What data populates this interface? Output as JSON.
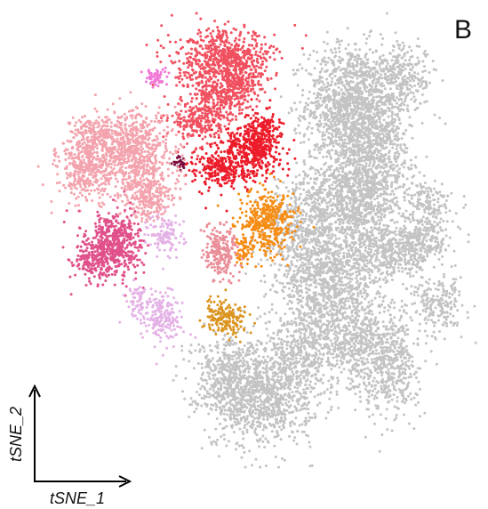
{
  "panel_label": "B",
  "colors": {
    "background": "#ffffff",
    "axis": "#000000",
    "grey": "#c3c3c3",
    "salmon": "#f0505f",
    "red": "#ec1c2a",
    "darkred": "#7a0a3a",
    "pink": "#f3a3ad",
    "magenta": "#e0508a",
    "lavender": "#e4b2e6",
    "brightpink": "#f07ad6",
    "orange": "#f58c14",
    "darkorange": "#db9420",
    "rose": "#ea8e98"
  },
  "chart_data": {
    "type": "scatter",
    "title": "",
    "xlabel": "tSNE_1",
    "ylabel": "tSNE_2",
    "xlim": [
      0,
      100
    ],
    "ylim": [
      0,
      100
    ],
    "grid": false,
    "legend": "none",
    "series": [
      {
        "color": "#c3c3c3",
        "blobs": [
          [
            71,
            80,
            8,
            11,
            1200
          ],
          [
            72,
            60,
            9,
            12,
            1300
          ],
          [
            66,
            40,
            9,
            10,
            900
          ],
          [
            73,
            27,
            8,
            9,
            600
          ],
          [
            60,
            25,
            6,
            8,
            400
          ],
          [
            52,
            15,
            9,
            9,
            800
          ],
          [
            45,
            20,
            7,
            8,
            500
          ],
          [
            80,
            47,
            7,
            5,
            350
          ],
          [
            87,
            50,
            5,
            4,
            200
          ],
          [
            88,
            58,
            4,
            4,
            150
          ],
          [
            90,
            36,
            5,
            5,
            200
          ],
          [
            80,
            22,
            5,
            10,
            350
          ],
          [
            78,
            73,
            5,
            12,
            400
          ],
          [
            83,
            86,
            5,
            6,
            250
          ],
          [
            60,
            52,
            6,
            10,
            400
          ]
        ]
      },
      {
        "color": "#f0505f",
        "blobs": [
          [
            44,
            90,
            9,
            5,
            600
          ],
          [
            42,
            82,
            6,
            5,
            300
          ],
          [
            47,
            85,
            4,
            5,
            200
          ],
          [
            38,
            76,
            5,
            4,
            200
          ]
        ]
      },
      {
        "color": "#ec1c2a",
        "blobs": [
          [
            50,
            70,
            5,
            5,
            400
          ],
          [
            43,
            66,
            5,
            4,
            250
          ],
          [
            52,
            74,
            3,
            4,
            150
          ]
        ]
      },
      {
        "color": "#7a0a3a",
        "blobs": [
          [
            34,
            67,
            1.2,
            1.2,
            25
          ]
        ]
      },
      {
        "color": "#f3a3ad",
        "blobs": [
          [
            24,
            70,
            7,
            7,
            650
          ],
          [
            14,
            66,
            5,
            6,
            400
          ],
          [
            27,
            60,
            5,
            5,
            300
          ],
          [
            16,
            74,
            4,
            3,
            150
          ]
        ]
      },
      {
        "color": "#e0508a",
        "blobs": [
          [
            20,
            49,
            5,
            6,
            500
          ],
          [
            15,
            45,
            4,
            4,
            150
          ]
        ]
      },
      {
        "color": "#e4b2e6",
        "blobs": [
          [
            30,
            33,
            4,
            5,
            200
          ],
          [
            31,
            51,
            3,
            4,
            120
          ],
          [
            25,
            36,
            2,
            3,
            60
          ]
        ]
      },
      {
        "color": "#f07ad6",
        "blobs": [
          [
            29,
            86,
            2,
            2,
            60
          ]
        ]
      },
      {
        "color": "#f58c14",
        "blobs": [
          [
            53,
            54,
            5,
            6,
            400
          ],
          [
            48,
            48,
            2,
            3,
            60
          ]
        ]
      },
      {
        "color": "#db9420",
        "blobs": [
          [
            44,
            33,
            4,
            3,
            180
          ]
        ]
      },
      {
        "color": "#ea8e98",
        "blobs": [
          [
            43,
            47,
            3,
            5,
            220
          ]
        ]
      }
    ]
  }
}
